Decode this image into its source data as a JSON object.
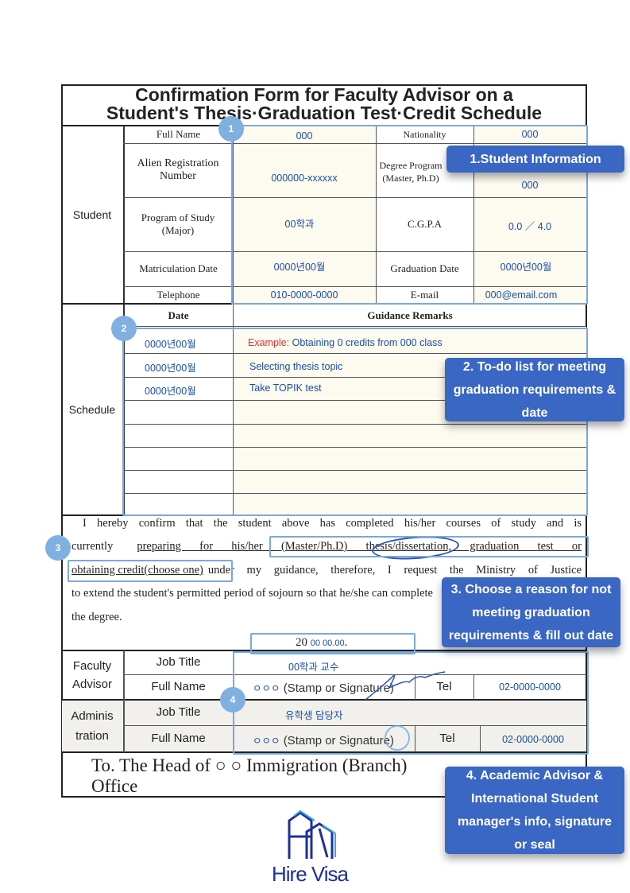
{
  "title": {
    "line1": "Confirmation Form for Faculty Advisor on a",
    "line2": "Student's Thesis·Graduation Test·Credit Schedule"
  },
  "student": {
    "section": "Student",
    "full_name_label": "Full Name",
    "full_name": "000",
    "nationality_label": "Nationality",
    "nationality": "000",
    "alien_label": "Alien Registration Number",
    "alien": "000000-xxxxxx",
    "degree_label": "Degree Program (Master, Ph.D)",
    "degree": "000",
    "program_label": "Program of Study (Major)",
    "program": "00학과",
    "cgpa_label": "C.G.P.A",
    "cgpa": "0.0 ／ 4.0",
    "matric_label": "Matriculation Date",
    "matric": "0000년00월",
    "grad_label": "Graduation Date",
    "grad": "0000년00월",
    "tel_label": "Telephone",
    "tel": "010-0000-0000",
    "email_label": "E-mail",
    "email": "000@email.com"
  },
  "schedule": {
    "section": "Schedule",
    "date_header": "Date",
    "remarks_header": "Guidance Remarks",
    "rows": [
      {
        "date": "0000년00월",
        "prefix": "Example:",
        "remark": "Obtaining 0 credits from 000 class"
      },
      {
        "date": "0000년00월",
        "prefix": "",
        "remark": "Selecting thesis topic"
      },
      {
        "date": "0000년00월",
        "prefix": "",
        "remark": "Take TOPIK test"
      }
    ]
  },
  "statement": {
    "l1": "I hereby confirm that the student above has completed his/her courses of study and is",
    "l2a": "currently",
    "l2b": "preparing for his/her (Master/Ph.D) thesis/dissertation, graduation test or",
    "l3a": "obtaining credit(choose one)",
    "l3b": "under my guidance, therefore, I request the Ministry of Justice",
    "l4": "to extend the student's permitted period of sojourn so that he/she can complete the",
    "l5": "degree.",
    "date_prefix": "20",
    "date_value": "00 00.00",
    "date_suffix": "."
  },
  "faculty": {
    "section": "Faculty Advisor",
    "job_label": "Job Title",
    "job": "00학과 교수",
    "name_label": "Full Name",
    "name": "ㅇㅇㅇ",
    "stamp": "(Stamp or Signature)",
    "tel_label": "Tel",
    "tel": "02-0000-0000"
  },
  "admin": {
    "section": "Adminis tration",
    "job_label": "Job Title",
    "job": "유학생 담당자",
    "name_label": "Full Name",
    "name": "ㅇㅇㅇ",
    "stamp": "(Stamp or Signature)",
    "tel_label": "Tel",
    "tel": "02-0000-0000"
  },
  "footer": {
    "to": "To. The Head of ○ ○ Immigration (Branch) Office"
  },
  "annotations": {
    "b1": "1",
    "b2": "2",
    "b3": "3",
    "b4": "4",
    "c1": "1.Student Information",
    "c2": "2. To-do list for meeting graduation requirements & date",
    "c3": "3. Choose a reason for not meeting graduation requirements & fill out date",
    "c4": "4. Academic Advisor & International Student manager's info, signature or seal"
  },
  "logo": {
    "text_hire": "Hire",
    "text_visa": "Visa"
  },
  "colors": {
    "value_text": "#1a4fa0",
    "highlight": "#7aa9dc",
    "callout": "#3a66c4",
    "example": "#e03030"
  }
}
